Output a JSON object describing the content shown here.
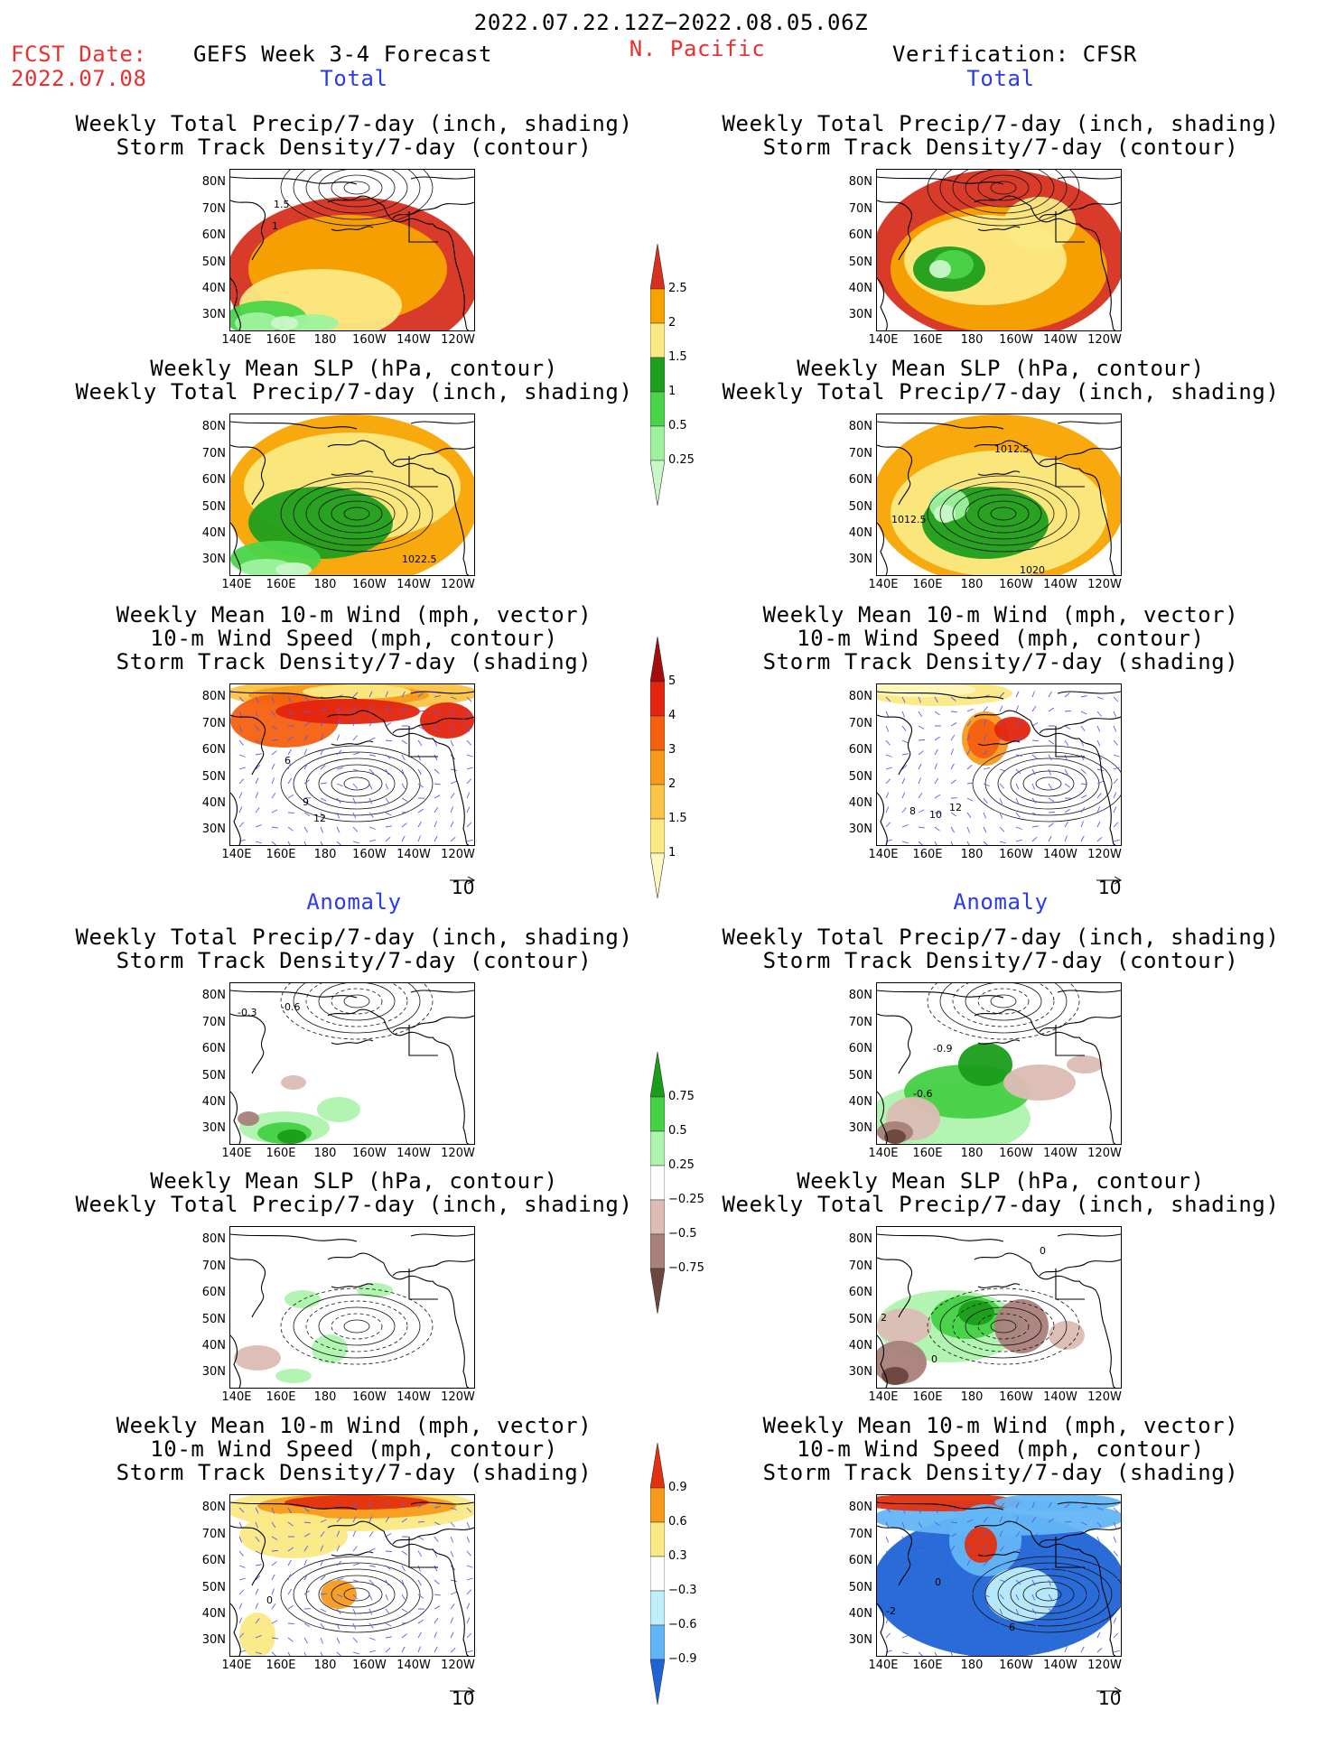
{
  "header": {
    "date_range": "2022.07.22.12Z−2022.08.05.06Z",
    "fcst_label": "FCST Date:",
    "fcst_date": "2022.07.08",
    "forecast_title": "GEFS Week 3-4 Forecast",
    "region": "N. Pacific",
    "verification": "Verification: CFSR"
  },
  "sections": {
    "total": "Total",
    "anomaly": "Anomaly"
  },
  "panel_titles": {
    "precip_storm": [
      "Weekly Total Precip/7-day (inch, shading)",
      "Storm Track Density/7-day (contour)"
    ],
    "slp_precip": [
      "Weekly Mean SLP (hPa, contour)",
      "Weekly Total Precip/7-day (inch, shading)"
    ],
    "wind_storm": [
      "Weekly Mean 10-m Wind (mph, vector)",
      "10-m Wind Speed (mph, contour)",
      "Storm Track Density/7-day (shading)"
    ]
  },
  "axes": {
    "lat_labels": [
      "80N",
      "70N",
      "60N",
      "50N",
      "40N",
      "30N"
    ],
    "lon_labels": [
      "140E",
      "160E",
      "180",
      "160W",
      "140W",
      "120W"
    ]
  },
  "vector_ref": "10",
  "contour_labels": {
    "fc_total_precip": [
      "1.5",
      "1"
    ],
    "fc_total_slp": [
      "1022.5"
    ],
    "fc_total_wind": [
      "6",
      "9",
      "12"
    ],
    "ob_total_slp": [
      "1012.5",
      "1012.5",
      "1020"
    ],
    "ob_total_wind": [
      "8",
      "10",
      "12"
    ],
    "fc_anom_precip": [
      "-0.3",
      "-0.6"
    ],
    "ob_anom_precip": [
      "-0.9",
      "-0.6"
    ],
    "ob_anom_slp": [
      "0",
      "0",
      "2"
    ],
    "ob_anom_wind": [
      "0",
      "-2",
      "6"
    ],
    "fc_anom_wind": [
      "0"
    ]
  },
  "colorbars": {
    "precip_total": {
      "labels": [
        "2.5",
        "2",
        "1.5",
        "1",
        "0.5",
        "0.25"
      ],
      "colors": [
        "#d7301f",
        "#f7a400",
        "#fbe983",
        "#1e9e1e",
        "#4ad44a",
        "#9ef29e",
        "#c9f7c9"
      ]
    },
    "storm_total": {
      "labels": [
        "5",
        "4",
        "3",
        "2",
        "1.5",
        "1"
      ],
      "colors": [
        "#a40d0d",
        "#e3240f",
        "#f5600f",
        "#f79b1d",
        "#fbc447",
        "#fbe983",
        "#fdf7c0"
      ]
    },
    "precip_anom": {
      "labels": [
        "0.75",
        "0.5",
        "0.25",
        "−0.25",
        "−0.5",
        "−0.75"
      ],
      "colors": [
        "#1a9e1a",
        "#46d046",
        "#aef3ae",
        "#ffffff",
        "#dcbcb4",
        "#a9807a",
        "#6b463d"
      ]
    },
    "storm_anom": {
      "labels": [
        "0.9",
        "0.6",
        "0.3",
        "−0.3",
        "−0.6",
        "−0.9"
      ],
      "colors": [
        "#e3300f",
        "#f79b1d",
        "#fbe983",
        "#ffffff",
        "#bfeffb",
        "#63b6f5",
        "#1e64d6"
      ]
    }
  }
}
